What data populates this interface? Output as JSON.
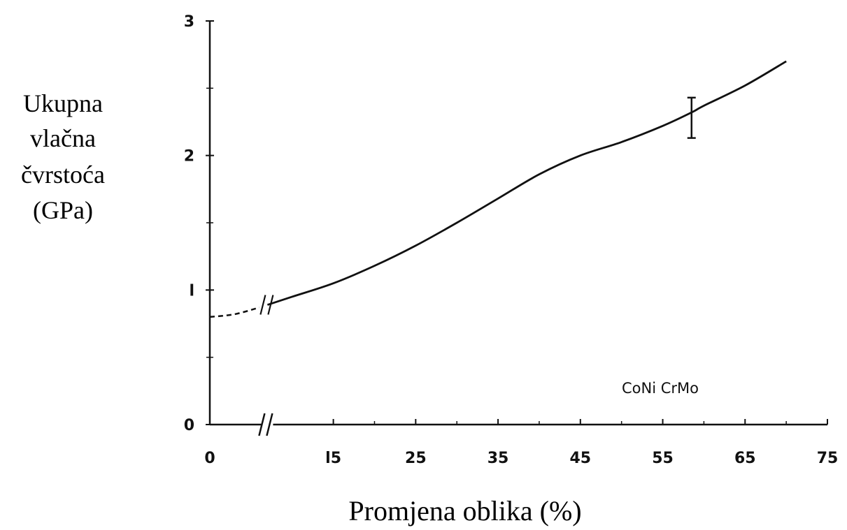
{
  "chart_data": {
    "type": "line",
    "title": "",
    "xlabel": "Promjena oblika (%)",
    "ylabel_lines": [
      "Ukupna",
      "vlačna",
      "čvrstoća",
      "(GPa)"
    ],
    "x_ticks": [
      {
        "value": 0,
        "label": "0"
      },
      {
        "value": 15,
        "label": "l5"
      },
      {
        "value": 25,
        "label": "25"
      },
      {
        "value": 35,
        "label": "35"
      },
      {
        "value": 45,
        "label": "45"
      },
      {
        "value": 55,
        "label": "55"
      },
      {
        "value": 65,
        "label": "65"
      },
      {
        "value": 75,
        "label": "75"
      }
    ],
    "y_ticks": [
      {
        "value": 0,
        "label": "0"
      },
      {
        "value": 1,
        "label": "l"
      },
      {
        "value": 2,
        "label": "2"
      },
      {
        "value": 3,
        "label": "3"
      }
    ],
    "xlim": [
      0,
      75
    ],
    "ylim": [
      0,
      3
    ],
    "grid": false,
    "axis_break_x": 7,
    "series": [
      {
        "name": "CoNi CrMo",
        "color": "#111111",
        "dashed_segment": {
          "x": [
            0,
            3,
            6
          ],
          "y": [
            0.8,
            0.82,
            0.87
          ]
        },
        "x": [
          7,
          10,
          15,
          20,
          25,
          30,
          35,
          40,
          45,
          50,
          55,
          58.5,
          60,
          65,
          70
        ],
        "y": [
          0.89,
          0.95,
          1.05,
          1.18,
          1.33,
          1.5,
          1.68,
          1.86,
          2.0,
          2.1,
          2.22,
          2.32,
          2.37,
          2.52,
          2.7
        ]
      }
    ],
    "error_bar": {
      "x": 58.5,
      "y": 2.28,
      "low": 2.13,
      "high": 2.43
    }
  }
}
